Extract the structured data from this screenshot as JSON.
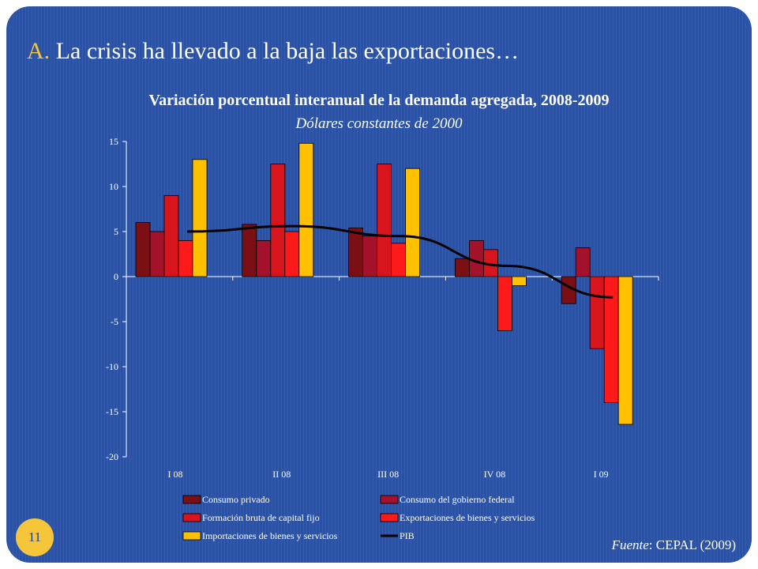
{
  "slide": {
    "heading_letter": "A.",
    "heading_text": "La crisis ha llevado a la baja las exportaciones…",
    "page_number": "11",
    "source_label": "Fuente",
    "source_text": ": CEPAL (2009)"
  },
  "chart_data": {
    "type": "bar",
    "title": "Variación porcentual interanual de la demanda agregada, 2008-2009",
    "subtitle": "Dólares constantes de 2000",
    "categories": [
      "I 08",
      "II 08",
      "III 08",
      "IV 08",
      "I 09"
    ],
    "ylim": [
      -20,
      15
    ],
    "yticks": [
      15,
      10,
      5,
      0,
      -5,
      -10,
      -15,
      -20
    ],
    "grid": false,
    "legend_position": "bottom",
    "series": [
      {
        "name": "Consumo privado",
        "type": "bar",
        "color": "#7a0f14",
        "values": [
          6.0,
          5.8,
          5.4,
          2.0,
          -3.0
        ]
      },
      {
        "name": "Consumo del gobierno federal",
        "type": "bar",
        "color": "#a3122a",
        "values": [
          5.0,
          4.0,
          4.5,
          4.0,
          3.2
        ]
      },
      {
        "name": "Formación bruta de capital fijo",
        "type": "bar",
        "color": "#d8141c",
        "values": [
          9.0,
          12.5,
          12.5,
          3.0,
          -8.0
        ]
      },
      {
        "name": "Exportaciones de bienes y servicios",
        "type": "bar",
        "color": "#ff1a1a",
        "values": [
          4.0,
          5.0,
          3.7,
          -6.0,
          -14.0
        ]
      },
      {
        "name": "Importaciones de bienes y servicios",
        "type": "bar",
        "color": "#ffc000",
        "values": [
          13.0,
          14.8,
          12.0,
          -1.0,
          -16.4
        ]
      },
      {
        "name": "PIB",
        "type": "line",
        "color": "#000000",
        "values": [
          5.0,
          5.6,
          4.5,
          1.2,
          -2.3
        ]
      }
    ]
  }
}
